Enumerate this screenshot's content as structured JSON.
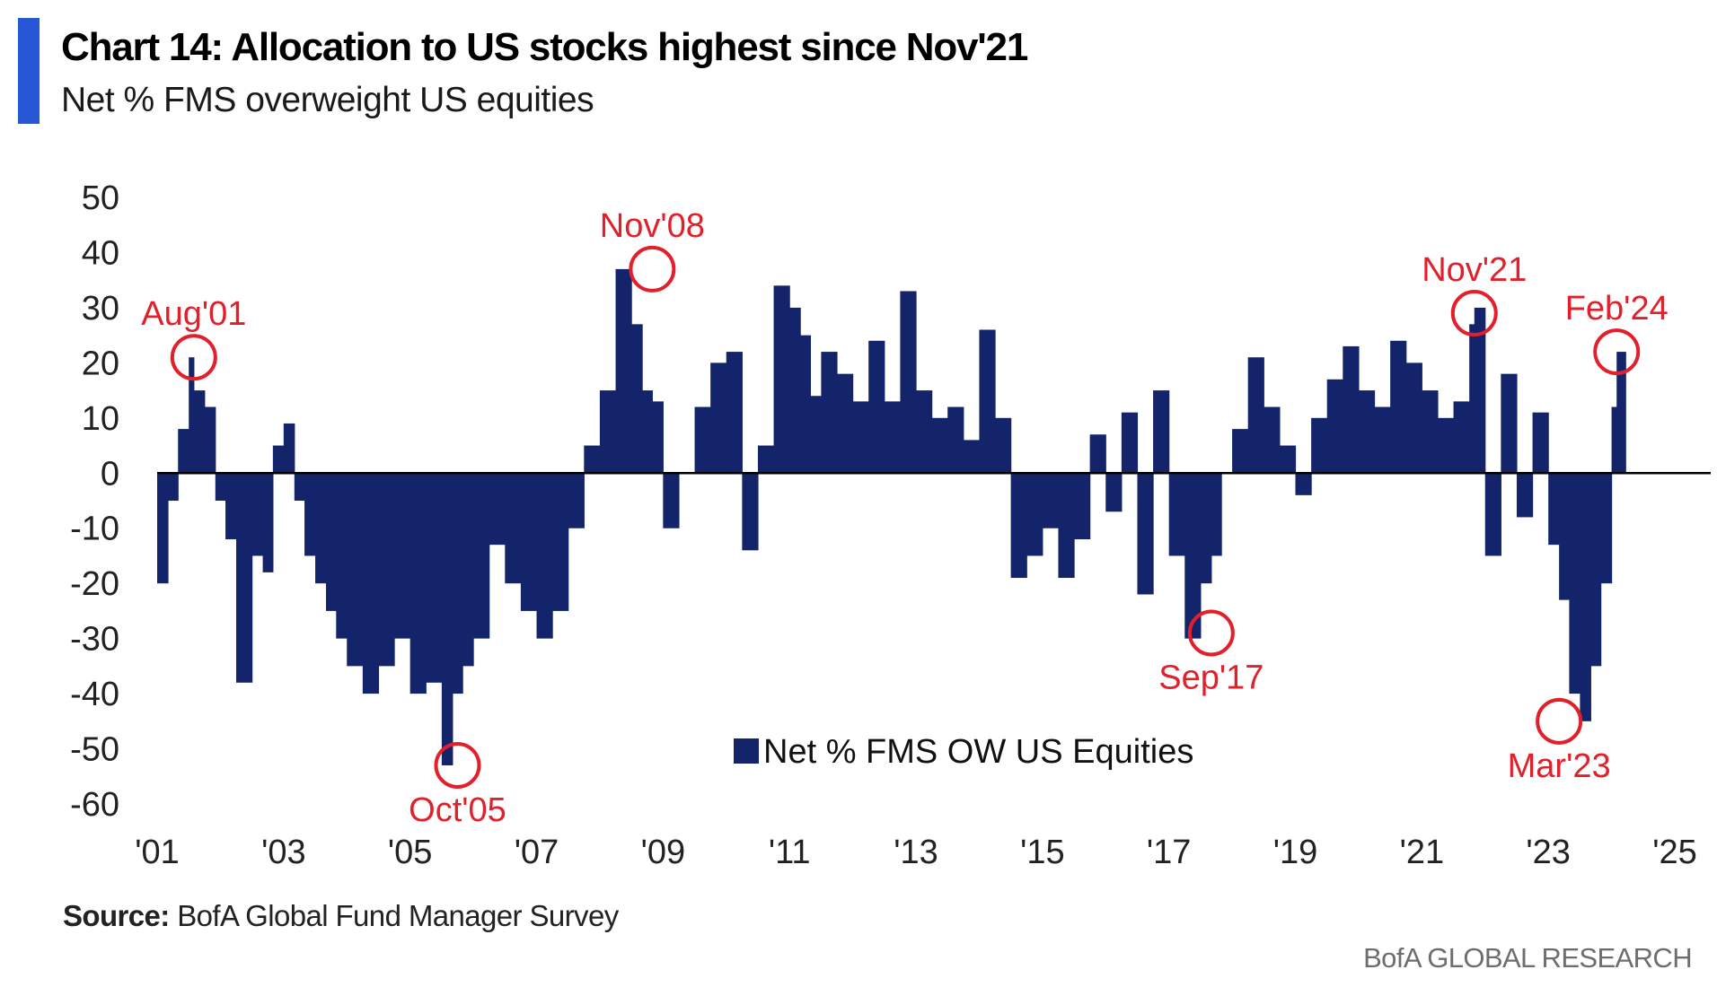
{
  "header": {
    "title": "Chart 14: Allocation to US stocks highest since Nov'21",
    "subtitle": "Net % FMS overweight US equities"
  },
  "footer": {
    "source_label": "Source:",
    "source_text": "BofA Global Fund Manager Survey",
    "brand": "BofA GLOBAL RESEARCH"
  },
  "colors": {
    "accent": "#2757d6",
    "bars": "#14246b",
    "highlight": "#e2202c",
    "zero_line": "#000000"
  },
  "chart_data": {
    "type": "bar",
    "title": "Chart 14: Allocation to US stocks highest since Nov'21",
    "subtitle": "Net % FMS overweight US equities",
    "series": [
      {
        "name": "Net % FMS OW US Equities",
        "x": [
          2001.0,
          2001.17,
          2001.33,
          2001.5,
          2001.58,
          2001.75,
          2001.92,
          2002.08,
          2002.25,
          2002.5,
          2002.67,
          2002.83,
          2003.0,
          2003.17,
          2003.33,
          2003.5,
          2003.67,
          2003.83,
          2004.0,
          2004.25,
          2004.5,
          2004.75,
          2005.0,
          2005.25,
          2005.5,
          2005.67,
          2005.83,
          2006.0,
          2006.25,
          2006.5,
          2006.75,
          2007.0,
          2007.25,
          2007.5,
          2007.75,
          2008.0,
          2008.25,
          2008.5,
          2008.67,
          2008.83,
          2009.0,
          2009.25,
          2009.5,
          2009.75,
          2010.0,
          2010.25,
          2010.5,
          2010.75,
          2011.0,
          2011.17,
          2011.33,
          2011.5,
          2011.75,
          2012.0,
          2012.25,
          2012.5,
          2012.75,
          2013.0,
          2013.25,
          2013.5,
          2013.75,
          2014.0,
          2014.25,
          2014.5,
          2014.75,
          2015.0,
          2015.25,
          2015.5,
          2015.75,
          2016.0,
          2016.25,
          2016.5,
          2016.75,
          2017.0,
          2017.25,
          2017.5,
          2017.67,
          2017.83,
          2018.0,
          2018.25,
          2018.5,
          2018.75,
          2019.0,
          2019.25,
          2019.5,
          2019.75,
          2020.0,
          2020.25,
          2020.5,
          2020.75,
          2021.0,
          2021.25,
          2021.5,
          2021.75,
          2021.83,
          2022.0,
          2022.25,
          2022.5,
          2022.75,
          2023.0,
          2023.17,
          2023.33,
          2023.5,
          2023.67,
          2023.83,
          2024.0,
          2024.08
        ],
        "values": [
          -20,
          -5,
          8,
          21,
          15,
          12,
          -5,
          -12,
          -38,
          -15,
          -18,
          5,
          9,
          -5,
          -15,
          -20,
          -25,
          -30,
          -35,
          -40,
          -35,
          -30,
          -40,
          -38,
          -53,
          -40,
          -35,
          -30,
          -13,
          -20,
          -25,
          -30,
          -25,
          -10,
          5,
          15,
          37,
          27,
          15,
          13,
          -10,
          0,
          12,
          20,
          22,
          -14,
          5,
          34,
          30,
          25,
          14,
          22,
          18,
          13,
          24,
          13,
          33,
          15,
          10,
          12,
          6,
          26,
          10,
          -19,
          -15,
          -10,
          -19,
          -12,
          7,
          -7,
          11,
          -22,
          15,
          -15,
          -30,
          -20,
          -15,
          0,
          8,
          21,
          12,
          5,
          -4,
          10,
          17,
          23,
          15,
          12,
          24,
          20,
          15,
          10,
          13,
          27,
          30,
          -15,
          18,
          -8,
          11,
          -13,
          -23,
          -40,
          -45,
          -35,
          -20,
          12,
          22
        ]
      }
    ],
    "annotations": [
      {
        "label": "Aug'01",
        "x": 2001.58,
        "y": 21
      },
      {
        "label": "Oct'05",
        "x": 2005.75,
        "y": -53
      },
      {
        "label": "Nov'08",
        "x": 2008.83,
        "y": 37
      },
      {
        "label": "Sep'17",
        "x": 2017.67,
        "y": -29
      },
      {
        "label": "Nov'21",
        "x": 2021.83,
        "y": 29
      },
      {
        "label": "Mar'23",
        "x": 2023.17,
        "y": -45
      },
      {
        "label": "Feb'24",
        "x": 2024.08,
        "y": 22
      }
    ],
    "x_ticks": [
      {
        "label": "'01",
        "value": 2001
      },
      {
        "label": "'03",
        "value": 2003
      },
      {
        "label": "'05",
        "value": 2005
      },
      {
        "label": "'07",
        "value": 2007
      },
      {
        "label": "'09",
        "value": 2009
      },
      {
        "label": "'11",
        "value": 2011
      },
      {
        "label": "'13",
        "value": 2013
      },
      {
        "label": "'15",
        "value": 2015
      },
      {
        "label": "'17",
        "value": 2017
      },
      {
        "label": "'19",
        "value": 2019
      },
      {
        "label": "'21",
        "value": 2021
      },
      {
        "label": "'23",
        "value": 2023
      },
      {
        "label": "'25",
        "value": 2025
      }
    ],
    "y_ticks": [
      {
        "label": "50",
        "value": 50
      },
      {
        "label": "40",
        "value": 40
      },
      {
        "label": "30",
        "value": 30
      },
      {
        "label": "20",
        "value": 20
      },
      {
        "label": "10",
        "value": 10
      },
      {
        "label": "0",
        "value": 0
      },
      {
        "label": "-10",
        "value": -10
      },
      {
        "label": "-20",
        "value": -20
      },
      {
        "label": "-30",
        "value": -30
      },
      {
        "label": "-40",
        "value": -40
      },
      {
        "label": "-50",
        "value": -50
      },
      {
        "label": "-60",
        "value": -60
      }
    ],
    "xlim": [
      2001,
      2025
    ],
    "ylim": [
      -60,
      50
    ],
    "grid": false,
    "legend_position": "center-bottom"
  }
}
